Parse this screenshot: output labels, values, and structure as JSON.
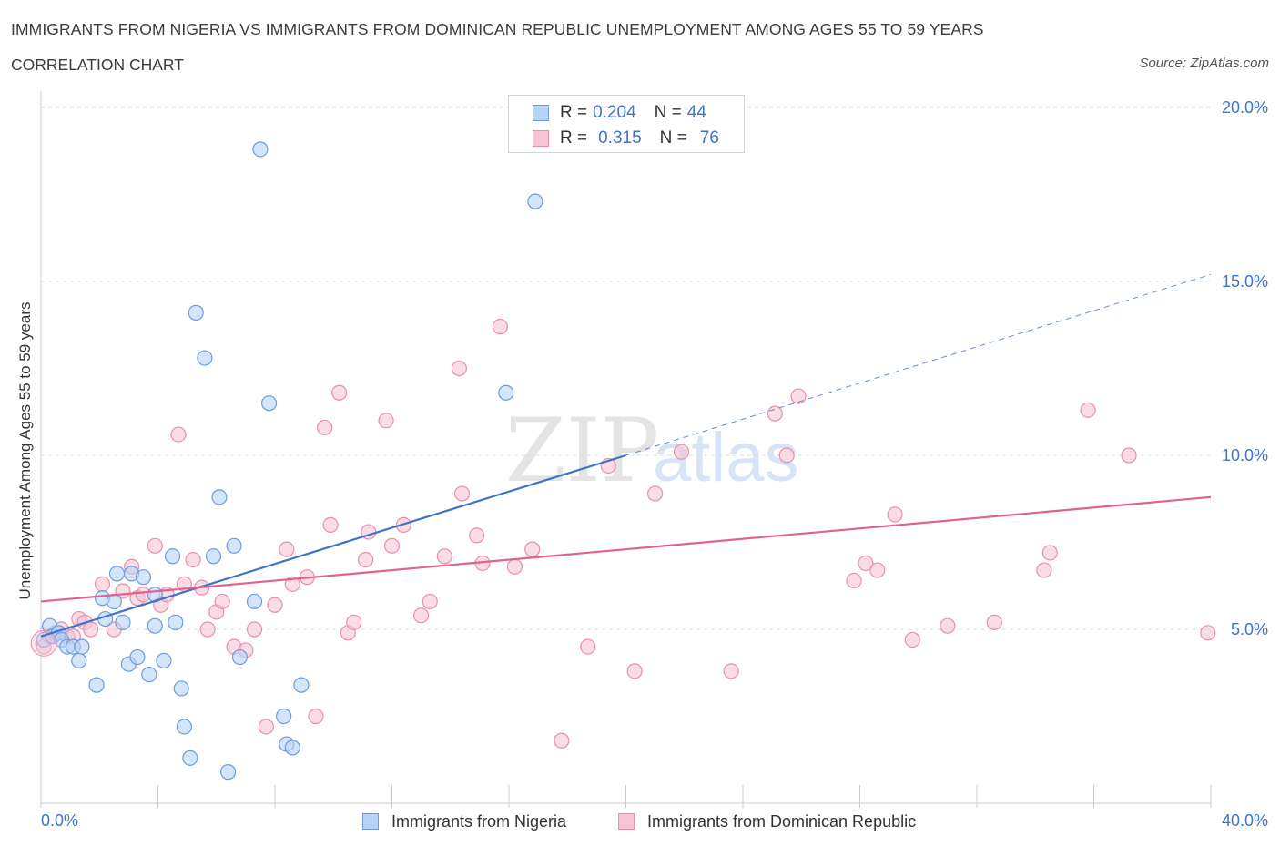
{
  "header": {
    "title": "IMMIGRANTS FROM NIGERIA VS IMMIGRANTS FROM DOMINICAN REPUBLIC UNEMPLOYMENT AMONG AGES 55 TO 59 YEARS",
    "subtitle": "CORRELATION CHART",
    "source": "Source: ZipAtlas.com"
  },
  "legend": {
    "r_label": "R =",
    "n_label": "N =",
    "rows": [
      {
        "r": "0.204",
        "n": "44"
      },
      {
        "r": "0.315",
        "n": "76"
      }
    ]
  },
  "colors": {
    "nigeria_fill": "#b8d2f5",
    "nigeria_stroke": "#6b9be0",
    "nigeria_line": "#3f74c9",
    "dominican_fill": "#f7c4d4",
    "dominican_stroke": "#e88fae",
    "dominican_line": "#e0638f",
    "tick_label": "#3f74c9"
  },
  "watermark": {
    "zip": "ZIP",
    "atlas": "atlas"
  },
  "chart_data": {
    "type": "scatter",
    "title": "IMMIGRANTS FROM NIGERIA VS IMMIGRANTS FROM DOMINICAN REPUBLIC UNEMPLOYMENT AMONG AGES 55 TO 59 YEARS",
    "xlabel": "",
    "ylabel": "Unemployment Among Ages 55 to 59 years",
    "xlim": [
      0,
      40
    ],
    "ylim": [
      0,
      20.5
    ],
    "x_tick_labels": [
      "0.0%",
      "40.0%"
    ],
    "y_ticks": [
      5,
      10,
      15,
      20
    ],
    "y_tick_labels": [
      "5.0%",
      "10.0%",
      "15.0%",
      "20.0%"
    ],
    "grid": "horizontal dashed",
    "legend_position": "top-center",
    "series": [
      {
        "name": "Immigrants from Nigeria",
        "R": 0.204,
        "N": 44,
        "trend": {
          "x0": 0,
          "y0": 4.8,
          "x1": 20,
          "y1": 10.0,
          "dashed_to_x": 40,
          "dashed_to_y": 15.2
        },
        "points": [
          [
            0.1,
            4.7
          ],
          [
            0.3,
            5.1
          ],
          [
            0.4,
            4.8
          ],
          [
            0.6,
            4.9
          ],
          [
            0.7,
            4.7
          ],
          [
            0.9,
            4.5
          ],
          [
            1.1,
            4.5
          ],
          [
            1.3,
            4.1
          ],
          [
            1.4,
            4.5
          ],
          [
            1.9,
            3.4
          ],
          [
            2.2,
            5.3
          ],
          [
            2.1,
            5.9
          ],
          [
            2.5,
            5.8
          ],
          [
            2.6,
            6.6
          ],
          [
            2.8,
            5.2
          ],
          [
            3.0,
            4.0
          ],
          [
            3.1,
            6.6
          ],
          [
            3.3,
            4.2
          ],
          [
            3.5,
            6.5
          ],
          [
            3.7,
            3.7
          ],
          [
            3.9,
            5.1
          ],
          [
            3.9,
            6.0
          ],
          [
            4.2,
            4.1
          ],
          [
            4.5,
            7.1
          ],
          [
            4.6,
            5.2
          ],
          [
            4.8,
            3.3
          ],
          [
            4.9,
            2.2
          ],
          [
            5.1,
            1.3
          ],
          [
            5.3,
            14.1
          ],
          [
            5.6,
            12.8
          ],
          [
            5.9,
            7.1
          ],
          [
            6.1,
            8.8
          ],
          [
            6.4,
            0.9
          ],
          [
            6.6,
            7.4
          ],
          [
            6.8,
            4.2
          ],
          [
            7.3,
            5.8
          ],
          [
            7.5,
            18.8
          ],
          [
            7.8,
            11.5
          ],
          [
            8.3,
            2.5
          ],
          [
            8.4,
            1.7
          ],
          [
            8.6,
            1.6
          ],
          [
            8.9,
            3.4
          ],
          [
            15.9,
            11.8
          ],
          [
            16.9,
            17.3
          ]
        ]
      },
      {
        "name": "Immigrants from Dominican Republic",
        "R": 0.315,
        "N": 76,
        "trend": {
          "x0": 0,
          "y0": 5.8,
          "x1": 40,
          "y1": 8.8
        },
        "points": [
          [
            0.1,
            4.5
          ],
          [
            0.3,
            4.8
          ],
          [
            0.5,
            4.9
          ],
          [
            0.7,
            5.0
          ],
          [
            0.9,
            4.8
          ],
          [
            1.1,
            4.8
          ],
          [
            1.3,
            5.3
          ],
          [
            1.5,
            5.2
          ],
          [
            1.7,
            5.0
          ],
          [
            2.1,
            6.3
          ],
          [
            2.5,
            5.0
          ],
          [
            2.8,
            6.1
          ],
          [
            3.1,
            6.8
          ],
          [
            3.3,
            5.9
          ],
          [
            3.5,
            6.0
          ],
          [
            3.9,
            7.4
          ],
          [
            4.1,
            5.7
          ],
          [
            4.3,
            6.0
          ],
          [
            4.7,
            10.6
          ],
          [
            4.9,
            6.3
          ],
          [
            5.2,
            7.0
          ],
          [
            5.5,
            6.2
          ],
          [
            5.7,
            5.0
          ],
          [
            6.0,
            5.5
          ],
          [
            6.2,
            5.8
          ],
          [
            6.6,
            4.5
          ],
          [
            7.0,
            4.4
          ],
          [
            7.3,
            5.0
          ],
          [
            7.7,
            2.2
          ],
          [
            8.0,
            5.7
          ],
          [
            8.4,
            7.3
          ],
          [
            8.6,
            6.3
          ],
          [
            9.1,
            6.5
          ],
          [
            9.4,
            2.5
          ],
          [
            9.7,
            10.8
          ],
          [
            9.9,
            8.0
          ],
          [
            10.2,
            11.8
          ],
          [
            10.5,
            4.9
          ],
          [
            10.7,
            5.2
          ],
          [
            11.1,
            7.0
          ],
          [
            11.2,
            7.8
          ],
          [
            11.8,
            11.0
          ],
          [
            12.0,
            7.4
          ],
          [
            12.4,
            8.0
          ],
          [
            13.0,
            5.4
          ],
          [
            13.3,
            5.8
          ],
          [
            13.8,
            7.1
          ],
          [
            14.3,
            12.5
          ],
          [
            14.4,
            8.9
          ],
          [
            14.9,
            7.7
          ],
          [
            15.1,
            6.9
          ],
          [
            15.7,
            13.7
          ],
          [
            16.2,
            6.8
          ],
          [
            16.8,
            7.3
          ],
          [
            17.8,
            1.8
          ],
          [
            18.7,
            4.5
          ],
          [
            19.4,
            9.7
          ],
          [
            20.3,
            3.8
          ],
          [
            21.0,
            8.9
          ],
          [
            21.9,
            10.1
          ],
          [
            23.6,
            3.8
          ],
          [
            25.1,
            11.2
          ],
          [
            25.5,
            10.0
          ],
          [
            25.9,
            11.7
          ],
          [
            27.8,
            6.4
          ],
          [
            28.2,
            6.9
          ],
          [
            28.6,
            6.7
          ],
          [
            29.2,
            8.3
          ],
          [
            29.8,
            4.7
          ],
          [
            31.0,
            5.1
          ],
          [
            32.6,
            5.2
          ],
          [
            34.3,
            6.7
          ],
          [
            34.5,
            7.2
          ],
          [
            35.8,
            11.3
          ],
          [
            37.2,
            10.0
          ],
          [
            39.9,
            4.9
          ]
        ]
      }
    ]
  },
  "axis_labels": {
    "x_left": "0.0%",
    "x_right": "40.0%"
  }
}
